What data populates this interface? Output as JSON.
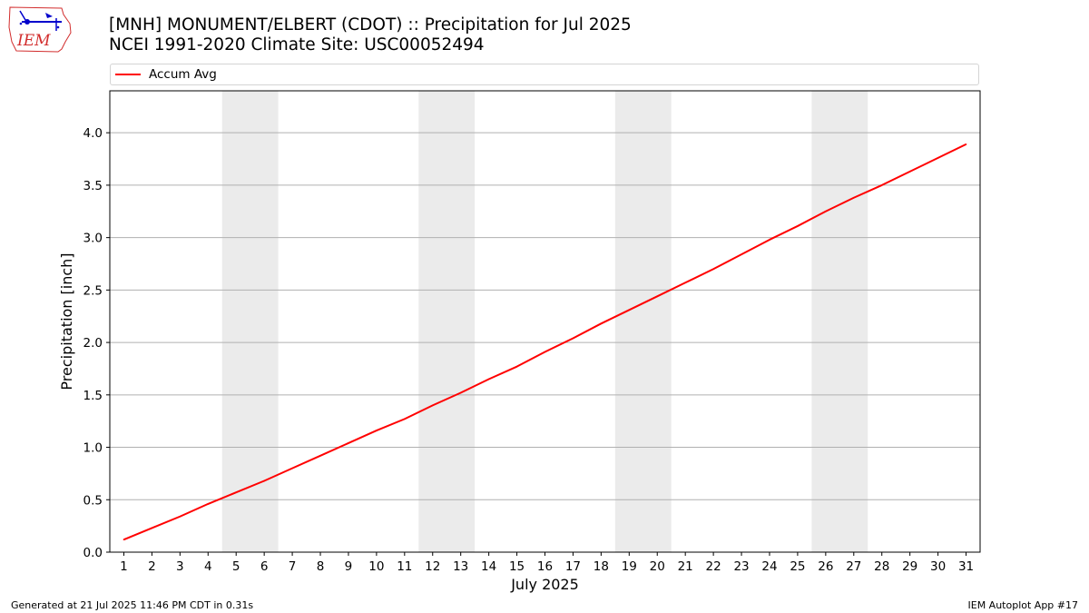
{
  "header": {
    "logo_icon": "iem-logo-icon",
    "logo_text": "IEM",
    "title_line1": "[MNH] MONUMENT/ELBERT (CDOT) :: Precipitation for Jul 2025",
    "title_line2": "NCEI 1991-2020 Climate Site: USC00052494"
  },
  "footer": {
    "left": "Generated at 21 Jul 2025 11:46 PM CDT in 0.31s",
    "right": "IEM Autoplot App #17"
  },
  "colors": {
    "line": "#ff0000",
    "weekend_band": "#ebebeb",
    "grid": "#b0b0b0",
    "logo": "#d22d2d",
    "logo_mark": "#0000cc"
  },
  "chart_data": {
    "type": "line",
    "x": [
      1,
      2,
      3,
      4,
      5,
      6,
      7,
      8,
      9,
      10,
      11,
      12,
      13,
      14,
      15,
      16,
      17,
      18,
      19,
      20,
      21,
      22,
      23,
      24,
      25,
      26,
      27,
      28,
      29,
      30,
      31
    ],
    "series": [
      {
        "name": "Accum Avg",
        "color": "#ff0000",
        "values": [
          0.12,
          0.23,
          0.34,
          0.46,
          0.57,
          0.68,
          0.8,
          0.92,
          1.04,
          1.16,
          1.27,
          1.4,
          1.52,
          1.65,
          1.77,
          1.91,
          2.04,
          2.18,
          2.31,
          2.44,
          2.57,
          2.7,
          2.84,
          2.98,
          3.11,
          3.25,
          3.38,
          3.5,
          3.63,
          3.76,
          3.89
        ]
      }
    ],
    "weekend_bands": [
      [
        5,
        6
      ],
      [
        12,
        13
      ],
      [
        19,
        20
      ],
      [
        26,
        27
      ]
    ],
    "xticks": [
      "1",
      "2",
      "3",
      "4",
      "5",
      "6",
      "7",
      "8",
      "9",
      "10",
      "11",
      "12",
      "13",
      "14",
      "15",
      "16",
      "17",
      "18",
      "19",
      "20",
      "21",
      "22",
      "23",
      "24",
      "25",
      "26",
      "27",
      "28",
      "29",
      "30",
      "31"
    ],
    "xlabel": "July 2025",
    "ylabel": "Precipitation [inch]",
    "yticks": [
      "0.0",
      "0.5",
      "1.0",
      "1.5",
      "2.0",
      "2.5",
      "3.0",
      "3.5",
      "4.0"
    ],
    "xlim": [
      0.5,
      31.5
    ],
    "ylim": [
      0,
      4.4
    ],
    "grid": "horizontal",
    "legend": "top"
  }
}
